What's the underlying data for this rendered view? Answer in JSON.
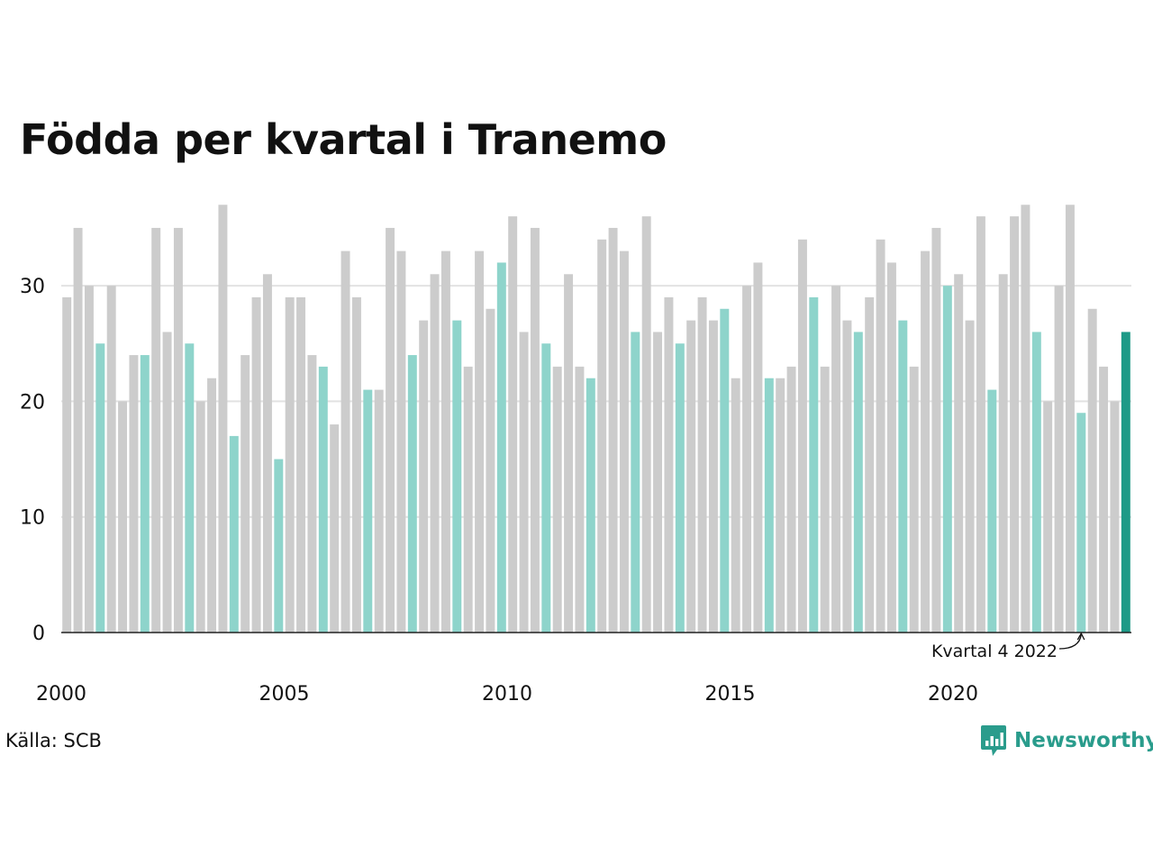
{
  "title": "Födda per kvartal i Tranemo",
  "source": "Källa: SCB",
  "brand": {
    "name": "Newsworthy",
    "icon": "newsworthy-logo-icon"
  },
  "colors": {
    "highlight": "#8ed4cb",
    "latest": "#1d9a87",
    "other": "#cccccc",
    "axis": "#222222",
    "grid": "#e2e2e2"
  },
  "chart_data": {
    "type": "bar",
    "title": "Födda per kvartal i Tranemo",
    "xlabel": "",
    "ylabel": "",
    "ylim": [
      0,
      37
    ],
    "yticks": [
      0,
      10,
      20,
      30
    ],
    "grid": true,
    "x_tick_labels": [
      "2000",
      "2005",
      "2010",
      "2015",
      "2020"
    ],
    "highlight_quarter": 4,
    "annotation": {
      "text": "Kvartal 4 2022",
      "target_index": 91
    },
    "quarters": [
      "Q1",
      "Q2",
      "Q3",
      "Q4"
    ],
    "periods": [
      "2000 K1",
      "2000 K2",
      "2000 K3",
      "2000 K4",
      "2001 K1",
      "2001 K2",
      "2001 K3",
      "2001 K4",
      "2002 K1",
      "2002 K2",
      "2002 K3",
      "2002 K4",
      "2003 K1",
      "2003 K2",
      "2003 K3",
      "2003 K4",
      "2004 K1",
      "2004 K2",
      "2004 K3",
      "2004 K4",
      "2005 K1",
      "2005 K2",
      "2005 K3",
      "2005 K4",
      "2006 K1",
      "2006 K2",
      "2006 K3",
      "2006 K4",
      "2007 K1",
      "2007 K2",
      "2007 K3",
      "2007 K4",
      "2008 K1",
      "2008 K2",
      "2008 K3",
      "2008 K4",
      "2009 K1",
      "2009 K2",
      "2009 K3",
      "2009 K4",
      "2010 K1",
      "2010 K2",
      "2010 K3",
      "2010 K4",
      "2011 K1",
      "2011 K2",
      "2011 K3",
      "2011 K4",
      "2012 K1",
      "2012 K2",
      "2012 K3",
      "2012 K4",
      "2013 K1",
      "2013 K2",
      "2013 K3",
      "2013 K4",
      "2014 K1",
      "2014 K2",
      "2014 K3",
      "2014 K4",
      "2015 K1",
      "2015 K2",
      "2015 K3",
      "2015 K4",
      "2016 K1",
      "2016 K2",
      "2016 K3",
      "2016 K4",
      "2017 K1",
      "2017 K2",
      "2017 K3",
      "2017 K4",
      "2018 K1",
      "2018 K2",
      "2018 K3",
      "2018 K4",
      "2019 K1",
      "2019 K2",
      "2019 K3",
      "2019 K4",
      "2020 K1",
      "2020 K2",
      "2020 K3",
      "2020 K4",
      "2021 K1",
      "2021 K2",
      "2021 K3",
      "2021 K4",
      "2022 K1",
      "2022 K2",
      "2022 K3",
      "2022 K4",
      "2023 K1",
      "2023 K2",
      "2023 K3",
      "2023 K4"
    ],
    "values": [
      29,
      35,
      30,
      25,
      30,
      20,
      24,
      24,
      35,
      26,
      35,
      25,
      20,
      22,
      37,
      17,
      24,
      29,
      31,
      15,
      29,
      29,
      24,
      23,
      18,
      33,
      29,
      21,
      21,
      35,
      33,
      24,
      27,
      31,
      33,
      27,
      23,
      33,
      28,
      32,
      36,
      26,
      35,
      25,
      23,
      31,
      23,
      22,
      34,
      35,
      33,
      26,
      36,
      26,
      29,
      25,
      27,
      29,
      27,
      28,
      22,
      30,
      32,
      22,
      22,
      23,
      34,
      29,
      23,
      30,
      27,
      26,
      29,
      34,
      32,
      27,
      23,
      33,
      35,
      30,
      31,
      27,
      36,
      21,
      31,
      36,
      37,
      26,
      20,
      30,
      37,
      19,
      28,
      23,
      20,
      26
    ]
  }
}
